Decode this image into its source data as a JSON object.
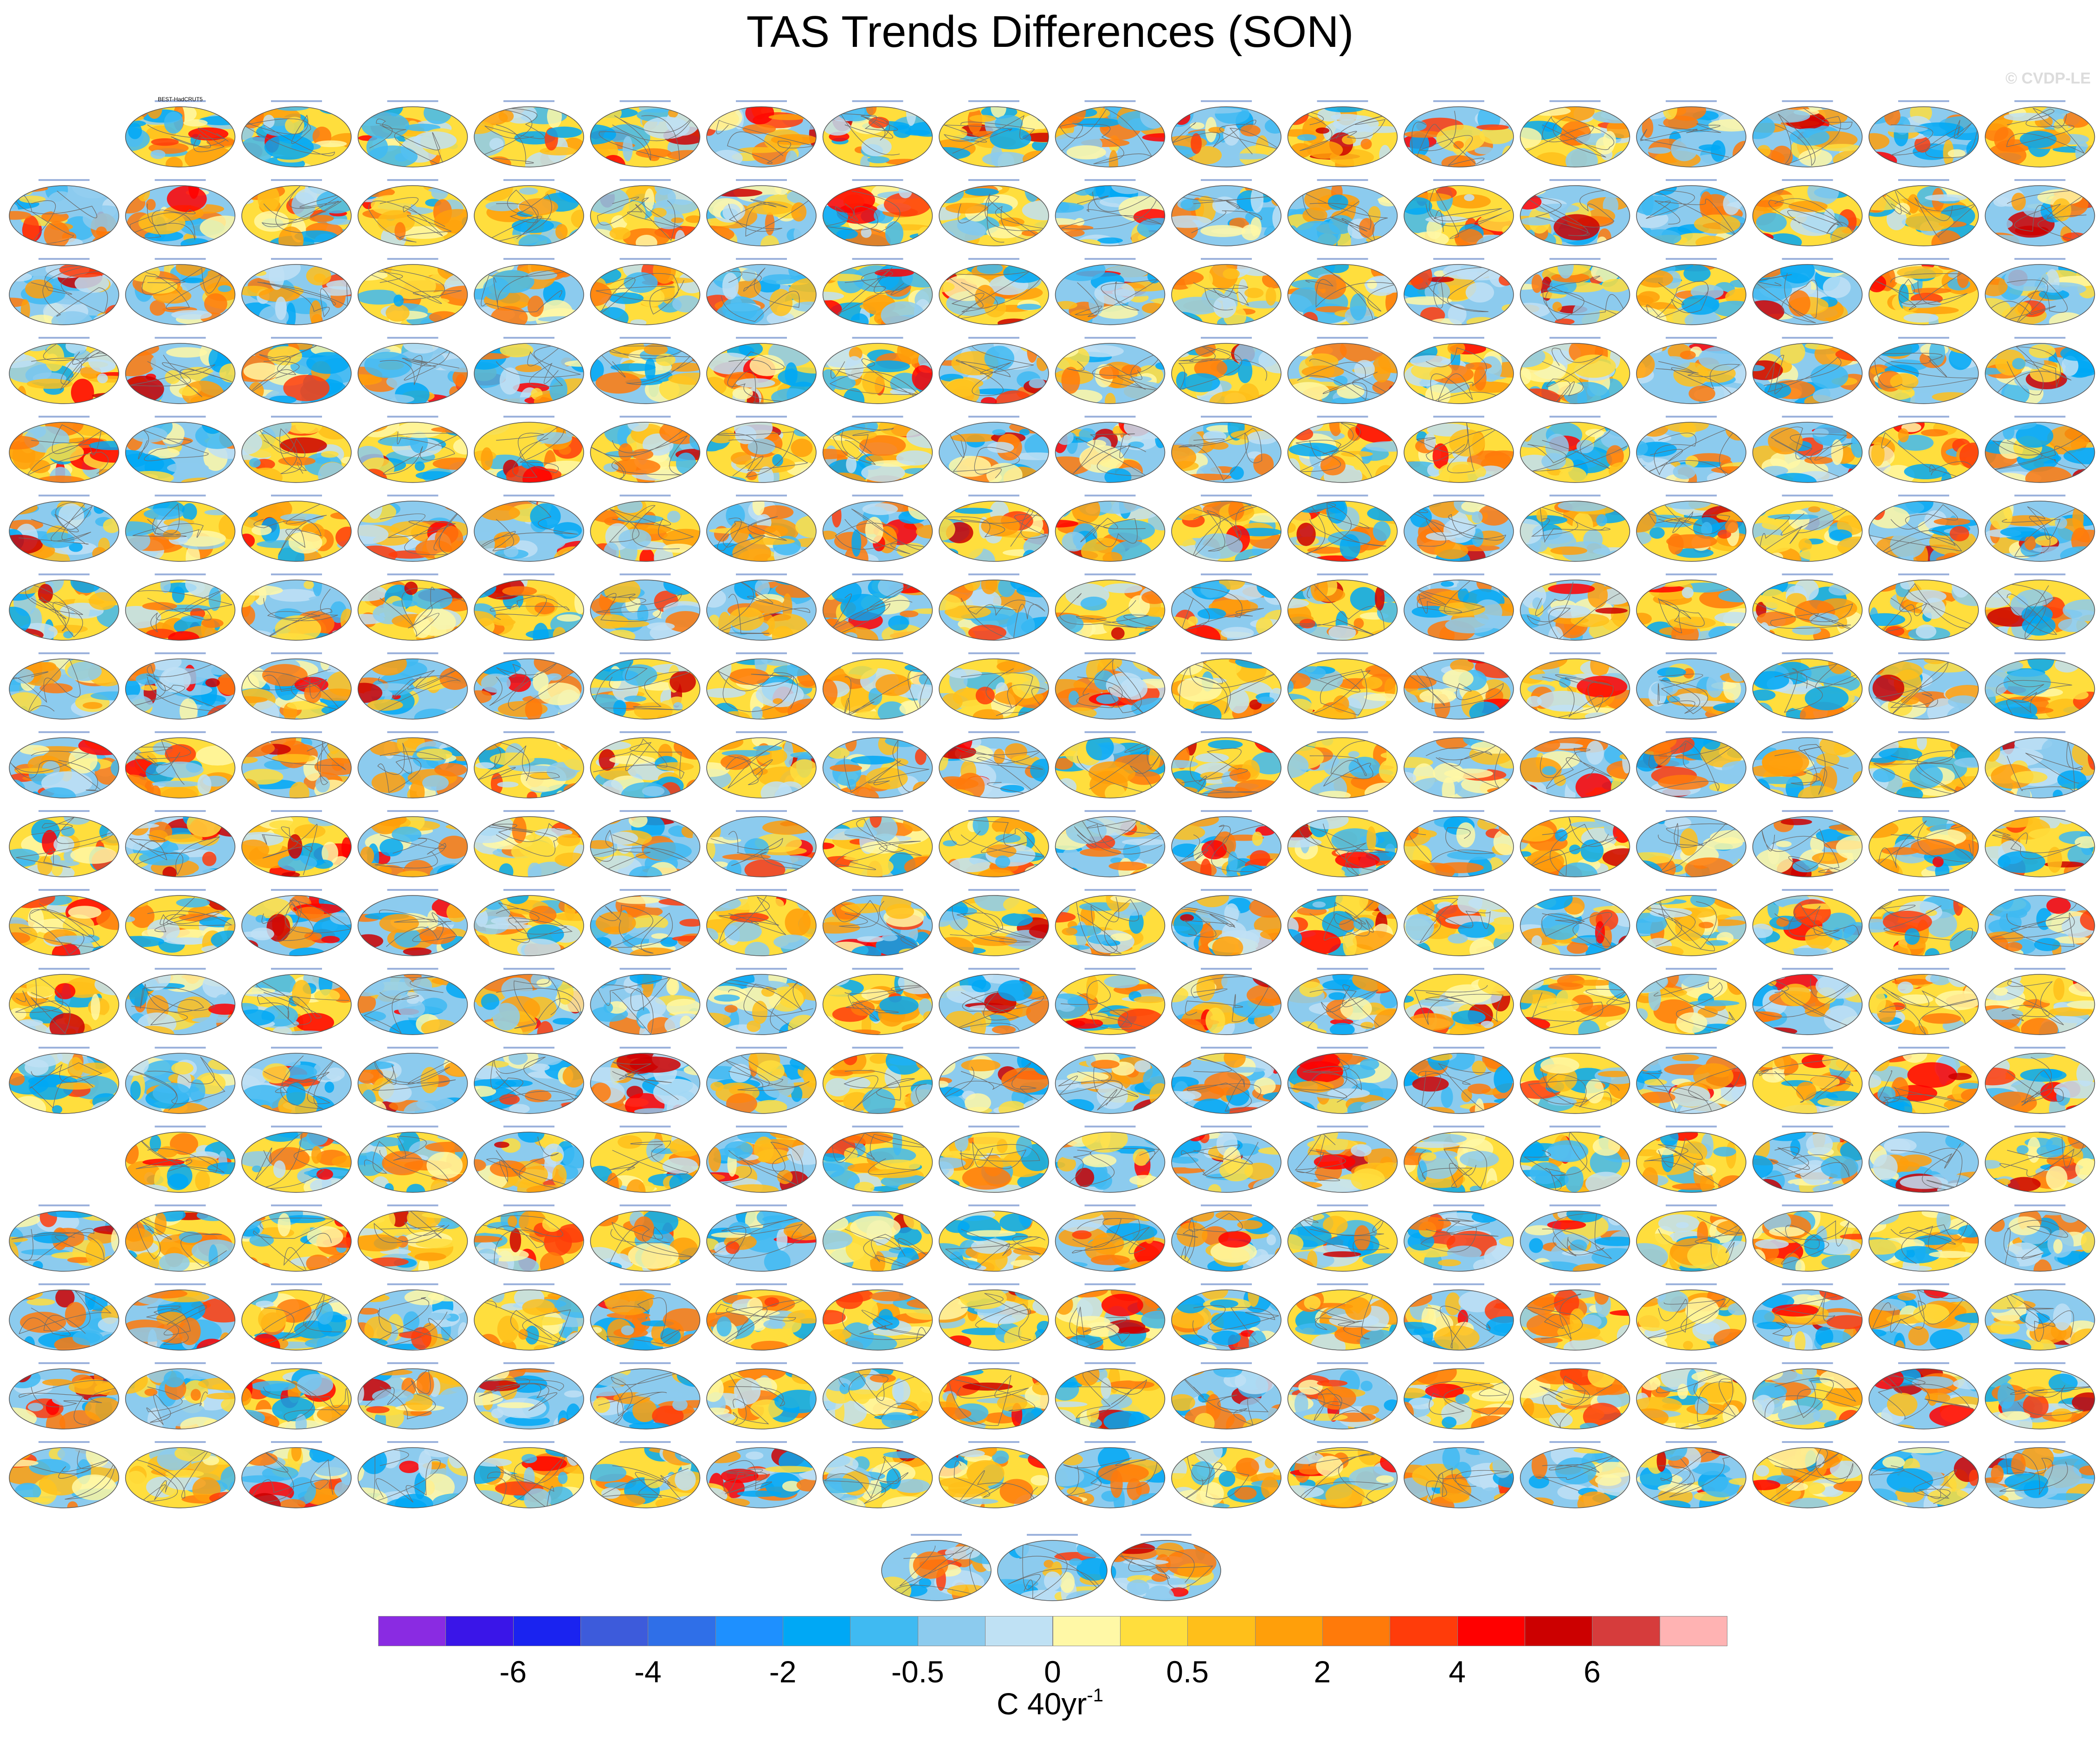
{
  "title": "TAS Trends Differences (SON)",
  "watermark": "© CVDP-LE",
  "chart_data": {
    "type": "heatmap",
    "title": "TAS Trends Differences (SON)",
    "description_panels": "Grid of global map panels showing surface air temperature trend differences (model ensemble members minus HadCRUT5 observations)",
    "first_panel_label": "BEST-HadCRUT5",
    "colorbar": {
      "units": "C 40yr",
      "units_superscript": "-1",
      "tick_labels": [
        "-6",
        "-4",
        "-2",
        "-0.5",
        "0",
        "0.5",
        "2",
        "4",
        "6"
      ],
      "tick_boundary_index": [
        2,
        4,
        6,
        8,
        10,
        12,
        14,
        16,
        18
      ],
      "levels": [
        -8,
        -7,
        -6,
        -5,
        -4,
        -3,
        -2,
        -1,
        -0.5,
        -0.25,
        0,
        0.25,
        0.5,
        1,
        2,
        3,
        4,
        5,
        6,
        7,
        8
      ],
      "colors": [
        "#8a2be2",
        "#3a15e8",
        "#1a23f0",
        "#3d5bdb",
        "#2f6fe8",
        "#1e90ff",
        "#00a8f5",
        "#3fbaf2",
        "#8ccbee",
        "#bfe1f4",
        "#fff8a6",
        "#ffde3d",
        "#ffbf1a",
        "#ff9f0a",
        "#ff7a0a",
        "#ff3c0a",
        "#ff0000",
        "#cc0000",
        "#d63c3c",
        "#ffb3b3"
      ]
    }
  }
}
